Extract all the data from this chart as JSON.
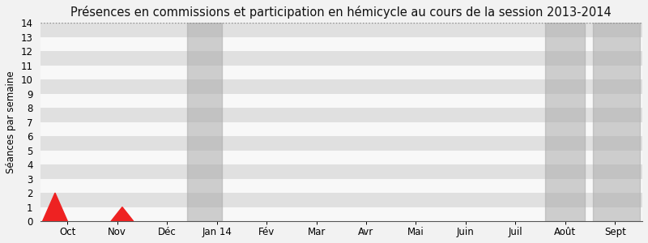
{
  "title": "Présences en commissions et participation en hémicycle au cours de la session 2013-2014",
  "ylabel": "Séances par semaine",
  "ylim": [
    0,
    14
  ],
  "yticks": [
    0,
    1,
    2,
    3,
    4,
    5,
    6,
    7,
    8,
    9,
    10,
    11,
    12,
    13,
    14
  ],
  "x_labels": [
    "Oct",
    "Nov",
    "Déc",
    "Jan 14",
    "Fév",
    "Mar",
    "Avr",
    "Mai",
    "Juin",
    "Juil",
    "Août",
    "Sept"
  ],
  "x_positions": [
    0,
    1,
    2,
    3,
    4,
    5,
    6,
    7,
    8,
    9,
    10,
    11
  ],
  "background_color": "#f2f2f2",
  "plot_bg_color": "#f2f2f2",
  "stripe_light": "#f8f8f8",
  "stripe_dark": "#e0e0e0",
  "dark_shade_color": "#aaaaaa",
  "dark_shade_alpha": 0.55,
  "dark_shade_regions": [
    {
      "x_start": 2.4,
      "x_end": 3.1
    },
    {
      "x_start": 9.6,
      "x_end": 10.4
    },
    {
      "x_start": 10.55,
      "x_end": 11.5
    }
  ],
  "red_triangles": [
    {
      "x_center": -0.25,
      "x_width": 0.5,
      "height": 2.0
    },
    {
      "x_center": 1.1,
      "x_width": 0.45,
      "height": 1.0
    }
  ],
  "red_color": "#ee2222",
  "dotted_line_y": 14,
  "title_fontsize": 10.5,
  "tick_fontsize": 8.5,
  "ylabel_fontsize": 8.5,
  "x_min": -0.55,
  "x_max": 11.55
}
